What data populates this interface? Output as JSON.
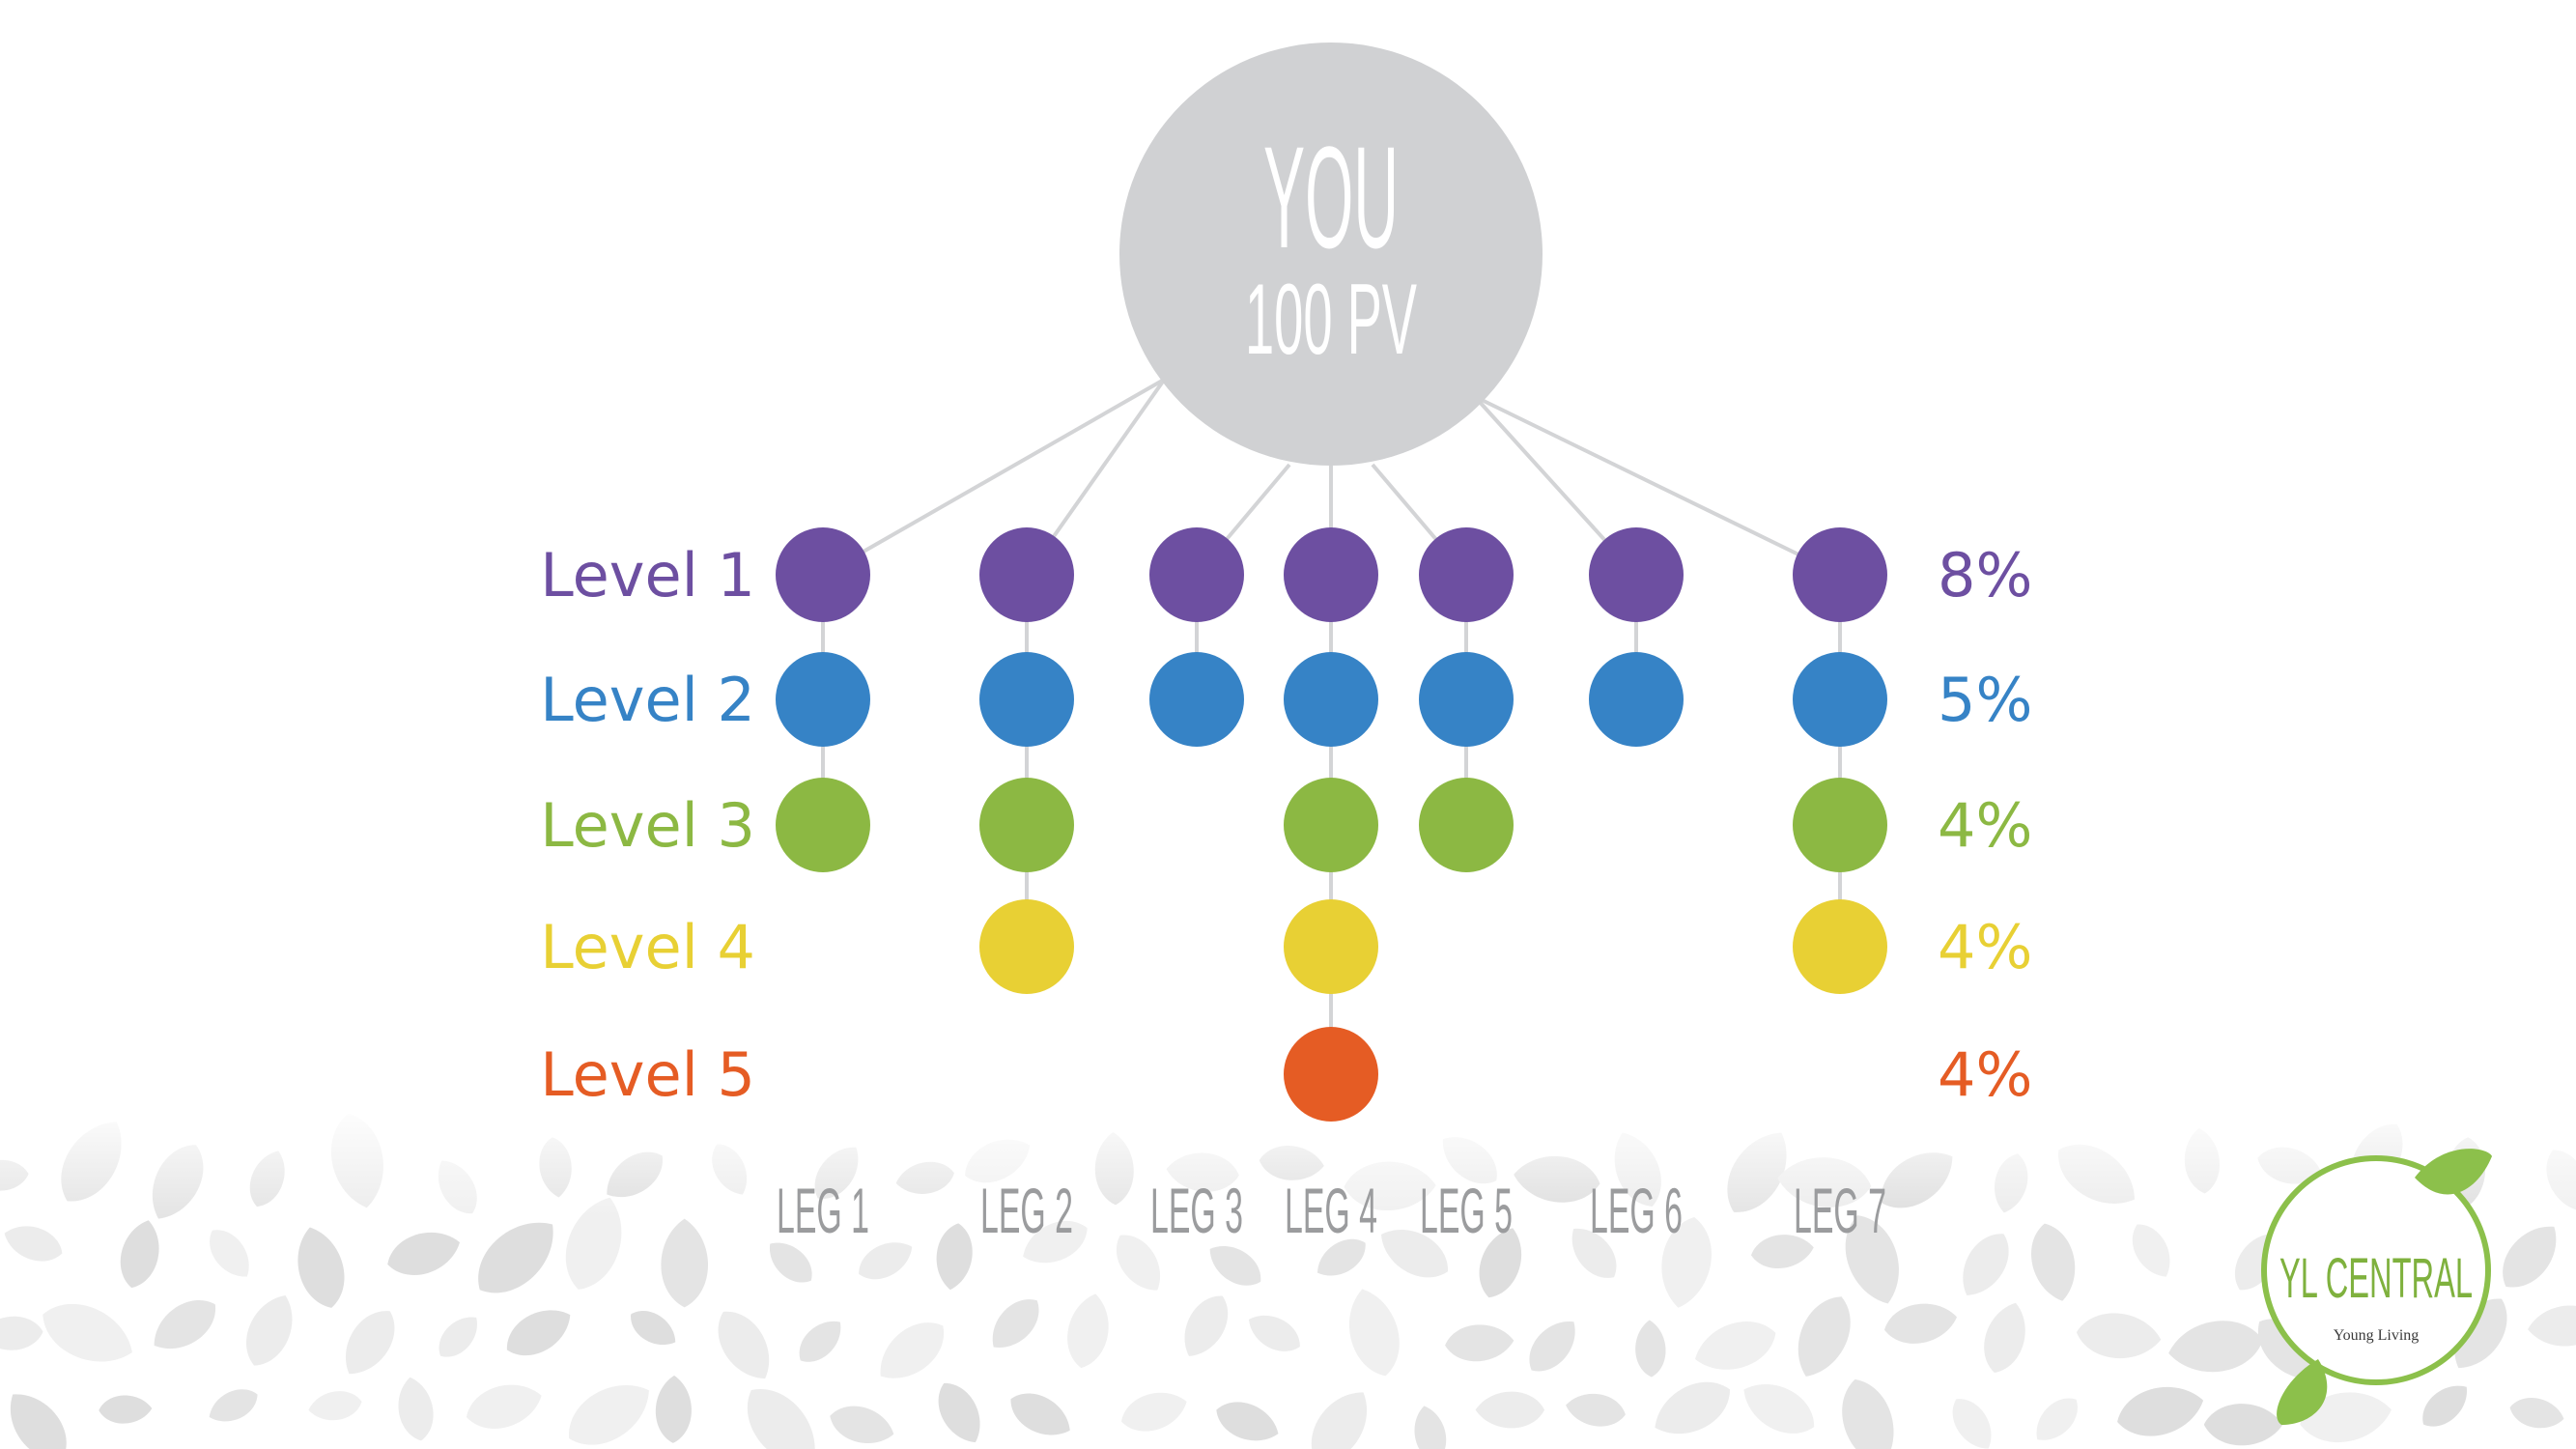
{
  "root": {
    "line1": "YOU",
    "line2": "100 PV",
    "fill": "#d0d1d3",
    "text_color": "#ffffff"
  },
  "levels": [
    {
      "label": "Level 1",
      "percent": "8%",
      "color": "#6d4fa1"
    },
    {
      "label": "Level 2",
      "percent": "5%",
      "color": "#3683c6"
    },
    {
      "label": "Level 3",
      "percent": "4%",
      "color": "#8cb843"
    },
    {
      "label": "Level 4",
      "percent": "4%",
      "color": "#e8d034"
    },
    {
      "label": "Level 5",
      "percent": "4%",
      "color": "#e55c24"
    }
  ],
  "legs": [
    {
      "label": "LEG 1",
      "depth": 3
    },
    {
      "label": "LEG 2",
      "depth": 4
    },
    {
      "label": "LEG 3",
      "depth": 2
    },
    {
      "label": "LEG 4",
      "depth": 5
    },
    {
      "label": "LEG 5",
      "depth": 3
    },
    {
      "label": "LEG 6",
      "depth": 2
    },
    {
      "label": "LEG 7",
      "depth": 4
    }
  ],
  "connector_color": "#d3d4d6",
  "leg_label_color": "#9b9c9e",
  "logo": {
    "title": "YL CENTRAL",
    "brand": "Young Living",
    "ring_color": "#8cc04b",
    "title_color": "#7fb13e"
  }
}
